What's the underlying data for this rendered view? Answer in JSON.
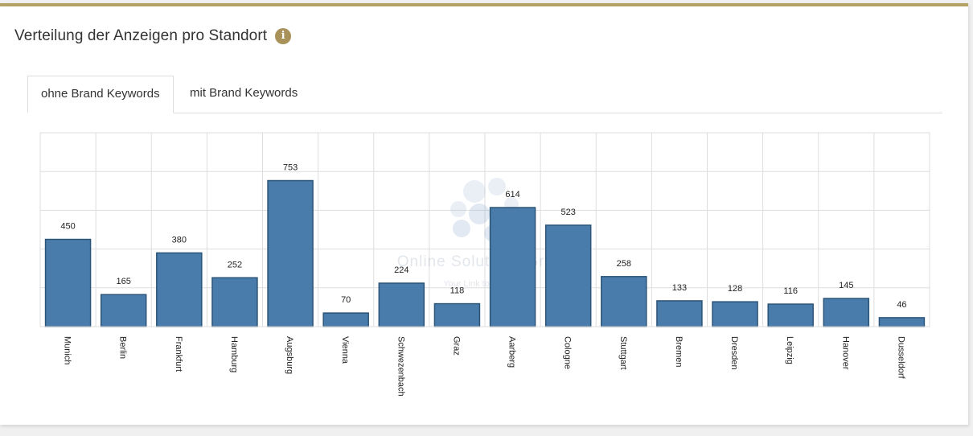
{
  "header": {
    "title": "Verteilung der Anzeigen pro Standort",
    "info_icon": "info-icon"
  },
  "tabs": [
    {
      "label": "ohne Brand Keywords",
      "active": true
    },
    {
      "label": "mit Brand Keywords",
      "active": false
    }
  ],
  "colors": {
    "accent": "#b4a265",
    "bar_fill": "#4a7cab",
    "bar_stroke": "#2a5478",
    "grid": "#dddddd"
  },
  "watermark": {
    "name": "Online Solutions Group",
    "tagline": "Your Link to"
  },
  "chart_data": {
    "type": "bar",
    "title": "",
    "xlabel": "",
    "ylabel": "",
    "ylim": [
      0,
      1000
    ],
    "grid": true,
    "categories": [
      "Munich",
      "Berlin",
      "Frankfurt",
      "Hamburg",
      "Augsburg",
      "Vienna",
      "Schwezenbach",
      "Graz",
      "Aarberg",
      "Cologne",
      "Stuttgart",
      "Bremen",
      "Dresden",
      "Leipzig",
      "Hanover",
      "Dusseldorf"
    ],
    "values": [
      450,
      165,
      380,
      252,
      753,
      70,
      224,
      118,
      614,
      523,
      258,
      133,
      128,
      116,
      145,
      46
    ]
  }
}
